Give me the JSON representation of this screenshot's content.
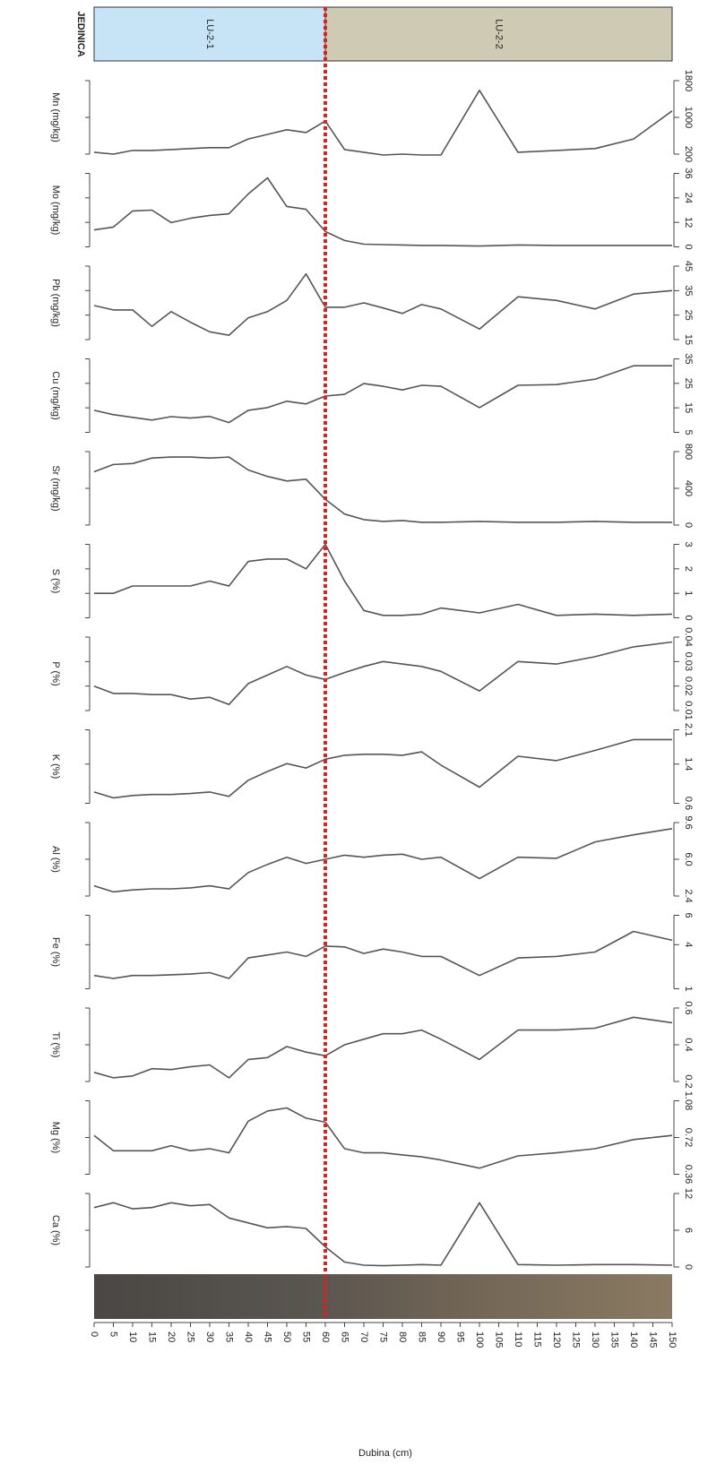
{
  "chart_data": {
    "type": "line",
    "units_title": "JEDINICA",
    "units": [
      {
        "label": "LU-2-1",
        "from": 0,
        "to": 60,
        "color": "#c6e4f5"
      },
      {
        "label": "LU-2-2",
        "from": 60,
        "to": 150,
        "color": "#cfcab4"
      }
    ],
    "xlabel": "Dubina (cm)",
    "xlim": [
      0,
      150
    ],
    "xticks": [
      0,
      5,
      10,
      15,
      20,
      25,
      30,
      35,
      40,
      45,
      50,
      55,
      60,
      65,
      70,
      75,
      80,
      85,
      90,
      95,
      100,
      105,
      110,
      115,
      120,
      125,
      130,
      135,
      140,
      145,
      150
    ],
    "x": [
      0,
      5,
      10,
      15,
      20,
      25,
      30,
      35,
      40,
      45,
      50,
      55,
      60,
      65,
      70,
      75,
      80,
      85,
      90,
      100,
      110,
      120,
      130,
      140,
      150
    ],
    "color": "#555555",
    "series": [
      {
        "name": "Mn (mg/kg)",
        "ylim": [
          200,
          1800
        ],
        "yticks": [
          200,
          1000,
          1800
        ],
        "values": [
          240,
          200,
          280,
          280,
          300,
          320,
          340,
          340,
          530,
          630,
          730,
          670,
          920,
          300,
          240,
          180,
          200,
          180,
          180,
          1590,
          240,
          280,
          320,
          530,
          1140
        ]
      },
      {
        "name": "Mo (mg/kg)",
        "ylim": [
          0,
          36
        ],
        "yticks": [
          0,
          12,
          24,
          36
        ],
        "values": [
          8.3,
          9.7,
          17.6,
          18,
          11.9,
          14,
          15.4,
          16.2,
          25.9,
          33.8,
          19.8,
          18.4,
          7.5,
          3.1,
          1.3,
          1.1,
          0.9,
          0.7,
          0.7,
          0.4,
          0.9,
          0.7,
          0.7,
          0.7,
          0.7
        ]
      },
      {
        "name": "Pb (mg/kg)",
        "ylim": [
          15,
          45
        ],
        "yticks": [
          15,
          25,
          35,
          45
        ],
        "values": [
          28.9,
          27.1,
          27.1,
          20.4,
          26.4,
          22.1,
          18.2,
          16.8,
          23.9,
          26.4,
          31,
          41.8,
          28.2,
          28.2,
          30,
          27.9,
          25.7,
          29.3,
          27.5,
          19.3,
          32.5,
          31,
          27.5,
          33.6,
          35
        ]
      },
      {
        "name": "Cu (mg/kg)",
        "ylim": [
          5,
          35
        ],
        "yticks": [
          5,
          15,
          25,
          35
        ],
        "values": [
          14,
          12.2,
          11.1,
          10,
          11.4,
          10.8,
          11.5,
          9,
          14,
          15.1,
          17.7,
          16.6,
          19.8,
          20.5,
          24.9,
          23.8,
          22.3,
          24.2,
          23.8,
          15.1,
          24.2,
          24.5,
          26.7,
          32.2,
          32.2
        ]
      },
      {
        "name": "Sr (mg/kg)",
        "ylim": [
          0,
          800
        ],
        "yticks": [
          0,
          400,
          800
        ],
        "values": [
          580,
          660,
          670,
          730,
          740,
          740,
          730,
          740,
          600,
          530,
          480,
          500,
          280,
          120,
          60,
          40,
          50,
          30,
          30,
          40,
          30,
          30,
          40,
          30,
          30
        ]
      },
      {
        "name": "S (%)",
        "ylim": [
          0,
          3
        ],
        "yticks": [
          0,
          1,
          2,
          3
        ],
        "values": [
          1.0,
          1.0,
          1.3,
          1.3,
          1.3,
          1.3,
          1.5,
          1.3,
          2.3,
          2.4,
          2.4,
          2.0,
          3.0,
          1.5,
          0.3,
          0.1,
          0.1,
          0.15,
          0.4,
          0.2,
          0.55,
          0.1,
          0.15,
          0.1,
          0.15
        ]
      },
      {
        "name": "P (%)",
        "ylim": [
          0.01,
          0.04
        ],
        "yticks": [
          0.01,
          0.02,
          0.03,
          0.04
        ],
        "values": [
          0.02,
          0.017,
          0.017,
          0.0165,
          0.0165,
          0.0147,
          0.0154,
          0.0125,
          0.021,
          0.0245,
          0.028,
          0.0245,
          0.0227,
          0.0255,
          0.028,
          0.03,
          0.029,
          0.028,
          0.026,
          0.018,
          0.03,
          0.029,
          0.032,
          0.036,
          0.038
        ]
      },
      {
        "name": "K (%)",
        "ylim": [
          0.6,
          2.1
        ],
        "yticks": [
          0.6,
          1.4,
          2.1
        ],
        "values": [
          0.83,
          0.71,
          0.76,
          0.78,
          0.78,
          0.8,
          0.83,
          0.74,
          1.07,
          1.25,
          1.41,
          1.32,
          1.5,
          1.58,
          1.6,
          1.6,
          1.58,
          1.65,
          1.38,
          0.93,
          1.56,
          1.47,
          1.68,
          1.9,
          1.9
        ]
      },
      {
        "name": "Al (%)",
        "ylim": [
          2.4,
          9.6
        ],
        "yticks": [
          2.4,
          {
            "value": 6,
            "label": "6.0"
          },
          9.6
        ],
        "values": [
          3.4,
          2.8,
          3.0,
          3.1,
          3.1,
          3.2,
          3.4,
          3.1,
          4.7,
          5.5,
          6.2,
          5.6,
          6.0,
          6.4,
          6.2,
          6.4,
          6.5,
          6.0,
          6.2,
          4.1,
          6.2,
          6.1,
          7.7,
          8.4,
          9.0
        ]
      },
      {
        "name": "Fe (%)",
        "ylim": [
          1,
          6
        ],
        "yticks": [
          1,
          4,
          6
        ],
        "values": [
          1.9,
          1.7,
          1.9,
          1.9,
          1.95,
          2.0,
          2.1,
          1.7,
          3.1,
          3.3,
          3.5,
          3.2,
          3.9,
          3.85,
          3.4,
          3.7,
          3.5,
          3.2,
          3.2,
          1.9,
          3.1,
          3.2,
          3.5,
          4.9,
          4.3
        ]
      },
      {
        "name": "Ti (%)",
        "ylim": [
          0.2,
          0.6
        ],
        "yticks": [
          0.2,
          0.4,
          0.6
        ],
        "values": [
          0.25,
          0.22,
          0.23,
          0.27,
          0.265,
          0.28,
          0.29,
          0.22,
          0.32,
          0.33,
          0.39,
          0.36,
          0.34,
          0.4,
          0.43,
          0.46,
          0.46,
          0.48,
          0.43,
          0.32,
          0.48,
          0.48,
          0.49,
          0.55,
          0.52
        ]
      },
      {
        "name": "Mg (%)",
        "ylim": [
          0.36,
          1.08
        ],
        "yticks": [
          0.36,
          0.72,
          1.08
        ],
        "values": [
          0.74,
          0.59,
          0.59,
          0.59,
          0.64,
          0.59,
          0.61,
          0.57,
          0.88,
          0.98,
          1.01,
          0.91,
          0.87,
          0.61,
          0.57,
          0.57,
          0.55,
          0.53,
          0.5,
          0.42,
          0.54,
          0.57,
          0.61,
          0.7,
          0.74
        ]
      },
      {
        "name": "Ca (%)",
        "ylim": [
          0,
          12
        ],
        "yticks": [
          0,
          6,
          12
        ],
        "values": [
          9.7,
          10.5,
          9.5,
          9.7,
          10.5,
          10.0,
          10.2,
          8.0,
          7.2,
          6.4,
          6.6,
          6.3,
          3.3,
          0.8,
          0.3,
          0.2,
          0.3,
          0.4,
          0.3,
          10.5,
          0.4,
          0.3,
          0.4,
          0.4,
          0.3
        ]
      }
    ]
  }
}
